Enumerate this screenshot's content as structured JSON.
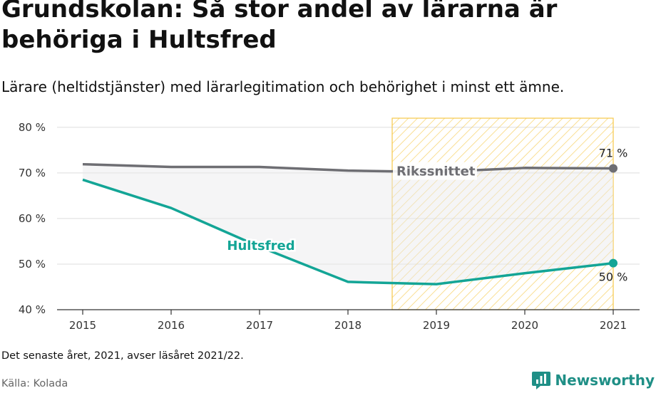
{
  "title": "Grundskolan: Så stor andel av lärarna är behöriga i Hultsfred",
  "subtitle": "Lärare (heltidstjänster) med lärarlegitimation och behörighet i minst ett ämne.",
  "footnote": "Det senaste året, 2021, avser läsåret 2021/22.",
  "source": "Källa: Kolada",
  "brand": {
    "name": "Newsworthy",
    "icon": "newsworthy-chart-logo-icon"
  },
  "colors": {
    "hultsfred": "#13a596",
    "rikssnittet": "#6e6e73",
    "highlight": "#f6c94a"
  },
  "chart_data": {
    "type": "line",
    "categories": [
      "2015",
      "2016",
      "2017",
      "2018",
      "2019",
      "2020",
      "2021"
    ],
    "ylim": [
      40,
      82
    ],
    "yticks": [
      40,
      50,
      60,
      70,
      80
    ],
    "ytick_labels": [
      "40 %",
      "50 %",
      "60 %",
      "70 %",
      "80 %"
    ],
    "grid": true,
    "highlight_range": [
      "2018.5",
      "2021"
    ],
    "series": [
      {
        "name": "Rikssnittet",
        "color": "#6e6e73",
        "values": [
          71.9,
          71.3,
          71.3,
          70.5,
          70.2,
          71.1,
          71.0
        ],
        "end_label": "71 %"
      },
      {
        "name": "Hultsfred",
        "color": "#13a596",
        "values": [
          68.5,
          62.3,
          53.8,
          46.1,
          45.6,
          48.0,
          50.2
        ],
        "end_label": "50 %"
      }
    ]
  }
}
